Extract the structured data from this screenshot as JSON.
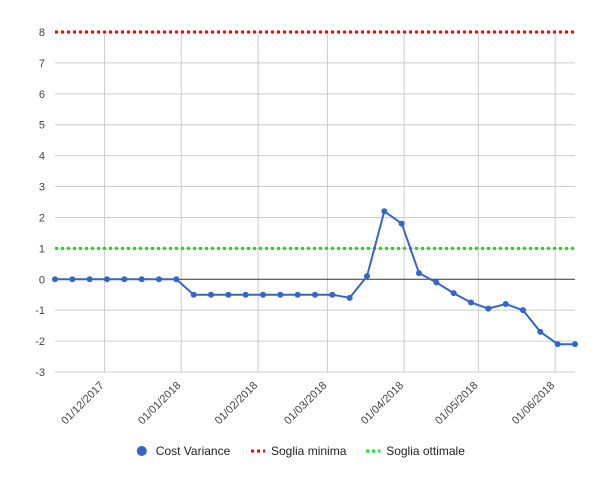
{
  "chart_data": {
    "type": "line",
    "title": "",
    "xlabel": "",
    "ylabel": "",
    "ylim": [
      -3,
      8
    ],
    "y_ticks": [
      -3,
      -2,
      -1,
      0,
      1,
      2,
      3,
      4,
      5,
      6,
      7,
      8
    ],
    "x_range_days": [
      0,
      194
    ],
    "x_ticks": [
      {
        "label": "01/12/2017",
        "day": 20
      },
      {
        "label": "01/01/2018",
        "day": 51
      },
      {
        "label": "01/02/2018",
        "day": 82
      },
      {
        "label": "01/03/2018",
        "day": 110
      },
      {
        "label": "01/04/2018",
        "day": 141
      },
      {
        "label": "01/05/2018",
        "day": 171
      },
      {
        "label": "01/06/2018",
        "day": 202
      }
    ],
    "x_day_origin": "2017-11-11",
    "grid": true,
    "legend_position": "bottom",
    "series": [
      {
        "name": "Cost Variance",
        "color": "#3366cc",
        "style": "line-markers",
        "points": [
          [
            0,
            0
          ],
          [
            7,
            0
          ],
          [
            14,
            0
          ],
          [
            21,
            0
          ],
          [
            28,
            0
          ],
          [
            35,
            0
          ],
          [
            42,
            0
          ],
          [
            49,
            0
          ],
          [
            56,
            -0.5
          ],
          [
            63,
            -0.5
          ],
          [
            70,
            -0.5
          ],
          [
            77,
            -0.5
          ],
          [
            84,
            -0.5
          ],
          [
            91,
            -0.5
          ],
          [
            98,
            -0.5
          ],
          [
            105,
            -0.5
          ],
          [
            112,
            -0.5
          ],
          [
            119,
            -0.6
          ],
          [
            126,
            0.1
          ],
          [
            133,
            2.2
          ],
          [
            140,
            1.8
          ],
          [
            147,
            0.2
          ],
          [
            154,
            -0.1
          ],
          [
            161,
            -0.45
          ],
          [
            168,
            -0.75
          ],
          [
            175,
            -0.95
          ],
          [
            182,
            -0.8
          ],
          [
            189,
            -1.0
          ],
          [
            196,
            -1.7
          ],
          [
            203,
            -2.1
          ],
          [
            210,
            -2.1
          ]
        ]
      },
      {
        "name": "Soglia minima",
        "color": "#ff0000",
        "style": "dotted",
        "constant": 8
      },
      {
        "name": "Soglia ottimale",
        "color": "#00ee00",
        "style": "dotted",
        "constant": 1
      }
    ]
  }
}
